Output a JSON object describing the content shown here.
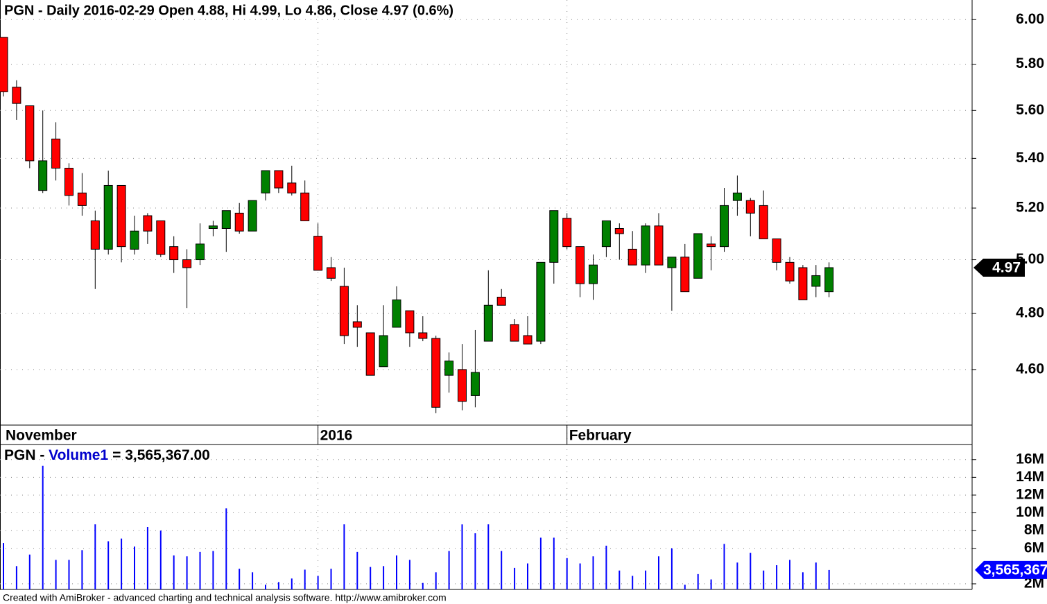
{
  "chart_data": [
    {
      "type": "candlestick",
      "title": "PGN - Daily 2016-02-29 Open 4.88, Hi 4.99, Lo 4.86, Close 4.97 (0.6%)",
      "categories": [
        "November",
        null,
        null,
        null,
        null,
        null,
        null,
        null,
        null,
        null,
        null,
        null,
        null,
        null,
        null,
        null,
        null,
        null,
        null,
        null,
        null,
        null,
        null,
        null,
        "2016",
        null,
        null,
        null,
        null,
        null,
        null,
        null,
        null,
        null,
        null,
        null,
        null,
        null,
        null,
        null,
        null,
        null,
        null,
        "February",
        null,
        null,
        null,
        null,
        null,
        null,
        null,
        null,
        null,
        null,
        null,
        null,
        null,
        null,
        null,
        null,
        null,
        null,
        null,
        null
      ],
      "open": [
        5.92,
        5.7,
        5.62,
        5.27,
        5.48,
        5.36,
        5.26,
        5.15,
        5.04,
        5.29,
        5.04,
        5.17,
        5.15,
        5.05,
        5.0,
        5.0,
        5.12,
        5.12,
        5.18,
        5.11,
        5.26,
        5.35,
        5.3,
        5.26,
        5.09,
        4.97,
        4.9,
        4.77,
        4.73,
        4.61,
        4.75,
        4.81,
        4.73,
        4.71,
        4.58,
        4.6,
        4.51,
        4.7,
        4.86,
        4.76,
        4.72,
        4.7,
        4.99,
        5.16,
        5.05,
        4.91,
        5.05,
        5.12,
        5.04,
        4.98,
        5.13,
        4.97,
        5.01,
        4.93,
        5.06,
        5.05,
        5.23,
        5.23,
        5.21,
        5.08,
        4.99,
        4.97,
        4.9,
        4.88
      ],
      "high": [
        5.92,
        5.73,
        5.62,
        5.6,
        5.55,
        5.38,
        5.34,
        5.19,
        5.35,
        5.29,
        5.17,
        5.18,
        5.15,
        5.09,
        5.04,
        5.14,
        5.15,
        5.19,
        5.22,
        5.23,
        5.35,
        5.35,
        5.37,
        5.31,
        5.14,
        5.01,
        4.97,
        4.83,
        4.73,
        4.83,
        4.9,
        4.81,
        4.79,
        4.72,
        4.66,
        4.69,
        4.74,
        4.96,
        4.89,
        4.78,
        4.79,
        4.99,
        5.19,
        5.18,
        5.05,
        5.02,
        5.15,
        5.14,
        5.11,
        5.14,
        5.18,
        5.01,
        5.06,
        5.1,
        5.09,
        5.28,
        5.33,
        5.24,
        5.27,
        5.08,
        5.01,
        4.98,
        4.98,
        4.99
      ],
      "low": [
        5.66,
        5.56,
        5.36,
        5.26,
        5.31,
        5.21,
        5.17,
        4.89,
        5.02,
        4.99,
        5.02,
        5.06,
        5.01,
        4.95,
        4.82,
        4.98,
        5.09,
        5.03,
        5.1,
        5.11,
        5.23,
        5.26,
        5.25,
        5.15,
        4.96,
        4.92,
        4.69,
        4.68,
        4.58,
        4.61,
        4.75,
        4.68,
        4.7,
        4.45,
        4.52,
        4.46,
        4.47,
        4.7,
        4.83,
        4.7,
        4.69,
        4.69,
        4.91,
        5.04,
        4.86,
        4.85,
        5.01,
        5.0,
        4.98,
        4.95,
        4.98,
        4.81,
        4.88,
        4.93,
        4.96,
        5.03,
        5.17,
        5.09,
        5.08,
        4.96,
        4.91,
        4.85,
        4.86,
        4.86
      ],
      "close": [
        5.68,
        5.63,
        5.39,
        5.39,
        5.36,
        5.25,
        5.21,
        5.04,
        5.29,
        5.05,
        5.11,
        5.11,
        5.02,
        5.0,
        4.97,
        5.06,
        5.13,
        5.19,
        5.11,
        5.23,
        5.35,
        5.28,
        5.26,
        5.15,
        4.96,
        4.93,
        4.72,
        4.75,
        4.58,
        4.72,
        4.85,
        4.73,
        4.71,
        4.47,
        4.63,
        4.49,
        4.59,
        4.83,
        4.83,
        4.7,
        4.69,
        4.99,
        5.19,
        5.05,
        4.91,
        4.98,
        5.15,
        5.1,
        4.98,
        5.13,
        4.98,
        5.01,
        4.88,
        5.1,
        5.05,
        5.21,
        5.26,
        5.18,
        5.08,
        4.99,
        4.92,
        4.85,
        4.94,
        4.97
      ],
      "ylim": [
        4.41,
        6.09
      ],
      "log_scale": true,
      "yticks": [
        {
          "value": 4.6,
          "label": "4.60"
        },
        {
          "value": 4.8,
          "label": "4.80"
        },
        {
          "value": 5.0,
          "label": "5.00"
        },
        {
          "value": 5.2,
          "label": "5.20"
        },
        {
          "value": 5.4,
          "label": "5.40"
        },
        {
          "value": 5.6,
          "label": "5.60"
        },
        {
          "value": 5.8,
          "label": "5.80"
        },
        {
          "value": 6.0,
          "label": "6.00"
        }
      ],
      "grid": true,
      "up_color": "#008000",
      "down_color": "#ff0000",
      "last_price_label": "4.97"
    },
    {
      "type": "bar",
      "title_prefix": "PGN - ",
      "series_name": "Volume1",
      "title_value": "= 3,565,367.00",
      "values": [
        6600000,
        4000000,
        5300000,
        15300000,
        4700000,
        4700000,
        5800000,
        8700000,
        6800000,
        7100000,
        6200000,
        8400000,
        8000000,
        5200000,
        5100000,
        5600000,
        5700000,
        10500000,
        3700000,
        3300000,
        1900000,
        2200000,
        2600000,
        3600000,
        2900000,
        3700000,
        8700000,
        5600000,
        3900000,
        4000000,
        5200000,
        4700000,
        2100000,
        3300000,
        5700000,
        8700000,
        7700000,
        8700000,
        5700000,
        3800000,
        4300000,
        7200000,
        7200000,
        4900000,
        4300000,
        5100000,
        6300000,
        3500000,
        2900000,
        3500000,
        5100000,
        6000000,
        1900000,
        3100000,
        2500000,
        6500000,
        4400000,
        5500000,
        3500000,
        4100000,
        4700000,
        3300000,
        4400000,
        3565367
      ],
      "color": "#0000ff",
      "ylim": [
        1370000,
        17700000
      ],
      "yticks": [
        {
          "value": 2000000,
          "label": "2M"
        },
        {
          "value": 6000000,
          "label": "6M"
        },
        {
          "value": 8000000,
          "label": "8M"
        },
        {
          "value": 10000000,
          "label": "10M"
        },
        {
          "value": 12000000,
          "label": "12M"
        },
        {
          "value": 14000000,
          "label": "14M"
        },
        {
          "value": 16000000,
          "label": "16M"
        }
      ],
      "grid": true,
      "last_value_label": "3,565,367"
    }
  ],
  "footer": "Created with AmiBroker - advanced charting and technical analysis software. http://www.amibroker.com"
}
